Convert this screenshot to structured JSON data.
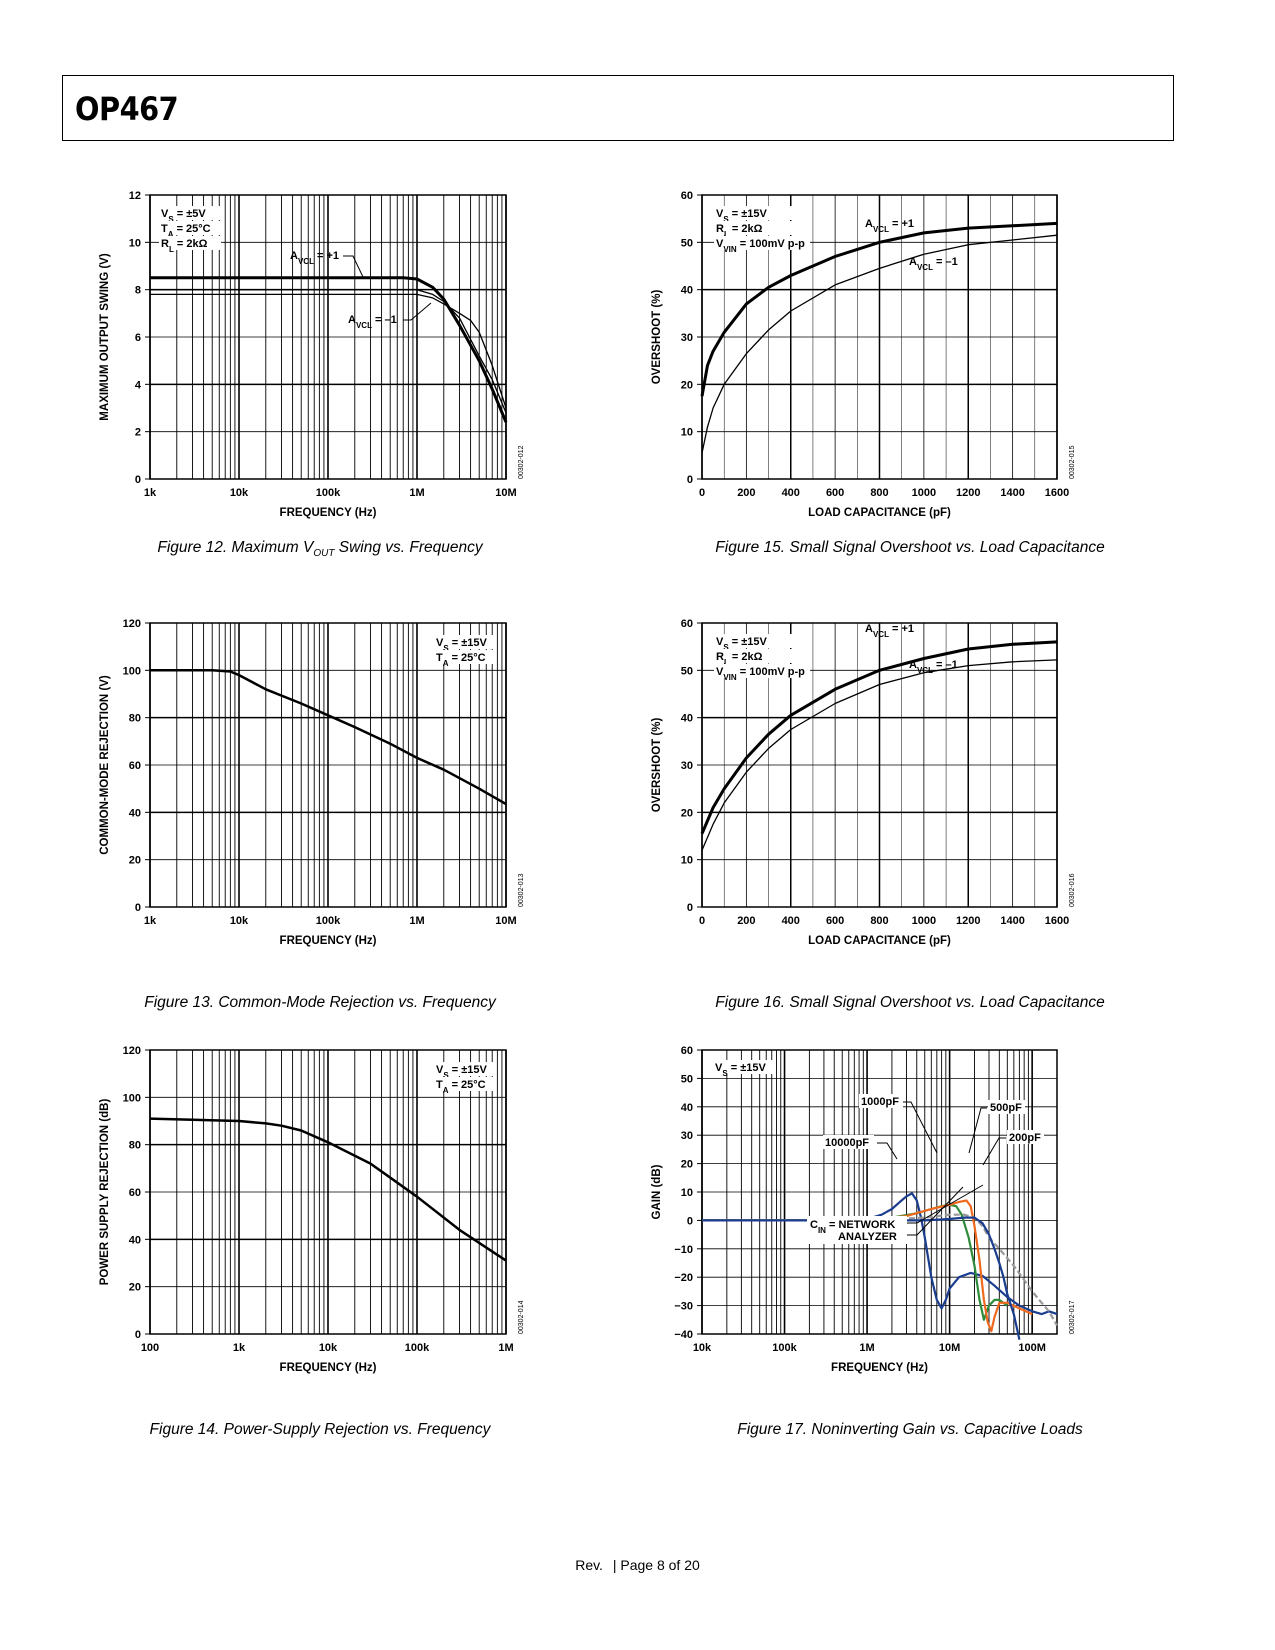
{
  "header": {
    "title": "OP467"
  },
  "footer": {
    "rev": "Rev.",
    "page": "| Page 8 of 20"
  },
  "figures": [
    {
      "caption_pre": "Figure 12. Maximum V",
      "caption_sub": "OUT",
      "caption_post": " Swing vs. Frequency",
      "code": "00302-012"
    },
    {
      "caption": "Figure 13. Common-Mode Rejection vs. Frequency",
      "code": "00302-013"
    },
    {
      "caption": "Figure 14. Power-Supply Rejection vs. Frequency",
      "code": "00302-014"
    },
    {
      "caption": "Figure 15. Small Signal Overshoot vs. Load Capacitance",
      "code": "00302-015"
    },
    {
      "caption": "Figure 16. Small Signal Overshoot vs. Load Capacitance",
      "code": "00302-016"
    },
    {
      "caption": "Figure 17. Noninverting Gain vs. Capacitive Loads",
      "code": "00302-017"
    }
  ],
  "chart_data": [
    {
      "id": "fig12",
      "type": "line",
      "xscale": "log",
      "xlabel": "FREQUENCY (Hz)",
      "ylabel": "MAXIMUM OUTPUT SWING (V)",
      "xlim": [
        1000,
        10000000
      ],
      "ylim": [
        0,
        12
      ],
      "xticks": [
        [
          1000,
          "1k"
        ],
        [
          10000,
          "10k"
        ],
        [
          100000,
          "100k"
        ],
        [
          1000000,
          "1M"
        ],
        [
          10000000,
          "10M"
        ]
      ],
      "yticks": [
        0,
        2,
        4,
        6,
        8,
        10,
        12
      ],
      "conditions": [
        [
          "V",
          "S",
          " = ±5V"
        ],
        [
          "T",
          "A",
          " = 25°C"
        ],
        [
          "R",
          "L",
          " = 2kΩ"
        ]
      ],
      "series": [
        {
          "name": "AVCL = +1",
          "x": [
            1000,
            10000,
            100000,
            700000,
            1000000,
            1500000,
            2000000,
            3000000,
            5000000,
            7000000,
            10000000
          ],
          "y": [
            8.5,
            8.5,
            8.5,
            8.5,
            8.45,
            8.1,
            7.6,
            6.5,
            5.0,
            3.8,
            2.4
          ]
        },
        {
          "name": "AVCL = –1",
          "x": [
            1000,
            10000,
            100000,
            1000000,
            1500000,
            2000000,
            3000000,
            4000000,
            5000000,
            7000000,
            10000000
          ],
          "y": [
            7.8,
            7.8,
            7.8,
            7.8,
            7.65,
            7.4,
            7.0,
            6.7,
            6.2,
            4.8,
            3.0
          ]
        },
        {
          "name": "",
          "x": [
            1000,
            10000,
            100000,
            1000000,
            1500000,
            2000000,
            3000000,
            5000000,
            7000000,
            10000000
          ],
          "y": [
            8.0,
            8.0,
            8.0,
            8.0,
            7.8,
            7.5,
            6.8,
            5.2,
            4.2,
            2.8
          ]
        }
      ]
    },
    {
      "id": "fig13",
      "type": "line",
      "xscale": "log",
      "xlabel": "FREQUENCY (Hz)",
      "ylabel": "COMMON-MODE REJECTION (V)",
      "xlim": [
        1000,
        10000000
      ],
      "ylim": [
        0,
        120
      ],
      "xticks": [
        [
          1000,
          "1k"
        ],
        [
          10000,
          "10k"
        ],
        [
          100000,
          "100k"
        ],
        [
          1000000,
          "1M"
        ],
        [
          10000000,
          "10M"
        ]
      ],
      "yticks": [
        0,
        20,
        40,
        60,
        80,
        100,
        120
      ],
      "conditions": [
        [
          "V",
          "S",
          " = ±15V"
        ],
        [
          "T",
          "A",
          " = 25°C"
        ]
      ],
      "series": [
        {
          "name": "",
          "x": [
            1000,
            5000,
            8000,
            10000,
            20000,
            50000,
            100000,
            200000,
            500000,
            1000000,
            2000000,
            5000000,
            10000000
          ],
          "y": [
            100,
            100,
            99.5,
            98,
            92,
            86,
            81,
            76,
            69,
            63,
            58,
            50,
            43.5
          ]
        }
      ]
    },
    {
      "id": "fig14",
      "type": "line",
      "xscale": "log",
      "xlabel": "FREQUENCY (Hz)",
      "ylabel": "POWER SUPPLY REJECTION (dB)",
      "xlim": [
        100,
        1000000
      ],
      "ylim": [
        0,
        120
      ],
      "xticks": [
        [
          100,
          "100"
        ],
        [
          1000,
          "1k"
        ],
        [
          10000,
          "10k"
        ],
        [
          100000,
          "100k"
        ],
        [
          1000000,
          "1M"
        ]
      ],
      "yticks": [
        0,
        20,
        40,
        60,
        80,
        100,
        120
      ],
      "conditions": [
        [
          "V",
          "S",
          " = ±15V"
        ],
        [
          "T",
          "A",
          " = 25°C"
        ]
      ],
      "series": [
        {
          "name": "",
          "x": [
            100,
            300,
            1000,
            2000,
            3000,
            5000,
            10000,
            30000,
            100000,
            300000,
            1000000
          ],
          "y": [
            91,
            90.5,
            90,
            89,
            88,
            86,
            81,
            72,
            58,
            44,
            31
          ]
        }
      ]
    },
    {
      "id": "fig15",
      "type": "line",
      "xscale": "linear",
      "xlabel": "LOAD CAPACITANCE (pF)",
      "ylabel": "OVERSHOOT (%)",
      "xlim": [
        0,
        1600
      ],
      "ylim": [
        0,
        60
      ],
      "xticks": [
        [
          0,
          "0"
        ],
        [
          200,
          "200"
        ],
        [
          400,
          "400"
        ],
        [
          600,
          "600"
        ],
        [
          800,
          "800"
        ],
        [
          1000,
          "1000"
        ],
        [
          1200,
          "1200"
        ],
        [
          1400,
          "1400"
        ],
        [
          1600,
          "1600"
        ]
      ],
      "yticks": [
        0,
        10,
        20,
        30,
        40,
        50,
        60
      ],
      "conditions": [
        [
          "V",
          "S",
          " = ±15V"
        ],
        [
          "R",
          "L",
          " = 2kΩ"
        ],
        [
          "V",
          "VIN",
          " = 100mV p-p"
        ]
      ],
      "series": [
        {
          "name": "AVCL = +1",
          "x": [
            0,
            25,
            50,
            100,
            200,
            300,
            400,
            600,
            800,
            1000,
            1200,
            1400,
            1600
          ],
          "y": [
            17.5,
            24,
            27,
            31,
            37,
            40.5,
            43,
            47,
            50,
            52,
            53,
            53.5,
            54
          ]
        },
        {
          "name": "AVCL = –1",
          "x": [
            0,
            25,
            50,
            100,
            200,
            300,
            400,
            600,
            800,
            1000,
            1200,
            1400,
            1600
          ],
          "y": [
            5.5,
            11,
            15,
            20,
            26.5,
            31.5,
            35.5,
            41,
            44.5,
            47.5,
            49.5,
            50.5,
            51.5
          ]
        }
      ]
    },
    {
      "id": "fig16",
      "type": "line",
      "xscale": "linear",
      "xlabel": "LOAD CAPACITANCE (pF)",
      "ylabel": "OVERSHOOT (%)",
      "xlim": [
        0,
        1600
      ],
      "ylim": [
        0,
        60
      ],
      "xticks": [
        [
          0,
          "0"
        ],
        [
          200,
          "200"
        ],
        [
          400,
          "400"
        ],
        [
          600,
          "600"
        ],
        [
          800,
          "800"
        ],
        [
          1000,
          "1000"
        ],
        [
          1200,
          "1200"
        ],
        [
          1400,
          "1400"
        ],
        [
          1600,
          "1600"
        ]
      ],
      "yticks": [
        0,
        10,
        20,
        30,
        40,
        50,
        60
      ],
      "conditions": [
        [
          "V",
          "S",
          " = ±15V"
        ],
        [
          "R",
          "L",
          " = 2kΩ"
        ],
        [
          "V",
          "VIN",
          " = 100mV p-p"
        ]
      ],
      "series": [
        {
          "name": "AVCL = +1",
          "x": [
            0,
            50,
            100,
            200,
            300,
            400,
            600,
            800,
            1000,
            1200,
            1400,
            1600
          ],
          "y": [
            15.5,
            21,
            25,
            31.5,
            36.5,
            40.5,
            46,
            50,
            52.5,
            54.5,
            55.5,
            56
          ]
        },
        {
          "name": "AVCL = –1",
          "x": [
            0,
            50,
            100,
            200,
            300,
            400,
            600,
            800,
            1000,
            1200,
            1400,
            1600
          ],
          "y": [
            12,
            17.5,
            22,
            28.5,
            33.5,
            37.5,
            43,
            47,
            49.5,
            51,
            51.8,
            52.2
          ]
        }
      ]
    },
    {
      "id": "fig17",
      "type": "line",
      "xscale": "log",
      "xlabel": "FREQUENCY (Hz)",
      "ylabel": "GAIN (dB)",
      "xlim": [
        10000,
        200000000
      ],
      "ylim": [
        -40,
        60
      ],
      "xticks": [
        [
          10000,
          "10k"
        ],
        [
          100000,
          "100k"
        ],
        [
          1000000,
          "1M"
        ],
        [
          10000000,
          "10M"
        ],
        [
          100000000,
          "100M"
        ]
      ],
      "yticks": [
        -40,
        -30,
        -20,
        -10,
        0,
        10,
        20,
        30,
        40,
        50,
        60
      ],
      "conditions": [
        [
          "V",
          "S",
          " = ±15V"
        ]
      ],
      "annotations": {
        "c1000": "1000pF",
        "c10000": "10000pF",
        "c500": "500pF",
        "c200": "200pF",
        "cin_pre": "C",
        "cin_sub": "IN",
        "cin_post": " = NETWORK",
        "cin_line2": "ANALYZER"
      },
      "series": [
        {
          "name": "10000pF",
          "color": "#1a3d8f",
          "x": [
            10000,
            500000,
            1000000,
            1500000,
            2000000,
            2500000,
            3000000,
            3500000,
            4000000,
            4500000,
            5000000,
            6000000,
            7000000,
            8000000,
            9000000,
            10000000,
            13000000,
            18000000,
            25000000,
            35000000,
            50000000,
            70000000,
            100000000,
            130000000,
            160000000,
            200000000
          ],
          "y": [
            0,
            0,
            0.5,
            2,
            4,
            6.5,
            8.5,
            9.5,
            7,
            1,
            -6,
            -20,
            -28,
            -31,
            -28,
            -24,
            -20,
            -18.5,
            -19.5,
            -23,
            -27,
            -30,
            -32,
            -33,
            -32,
            -33
          ]
        },
        {
          "name": "1000pF",
          "color": "#2e8b3a",
          "x": [
            10000,
            1000000,
            2000000,
            4000000,
            6000000,
            8000000,
            10000000,
            12000000,
            14000000,
            17000000,
            20000000,
            23000000,
            26000000,
            30000000,
            35000000,
            40000000,
            50000000
          ],
          "y": [
            0,
            0,
            1,
            2.5,
            4,
            5,
            5.5,
            5,
            2,
            -6,
            -16,
            -28,
            -35,
            -30,
            -28,
            -28,
            -30
          ]
        },
        {
          "name": "500pF",
          "color": "#ef6a1e",
          "x": [
            10000,
            1000000,
            3000000,
            6000000,
            10000000,
            13000000,
            16000000,
            18000000,
            20000000,
            23000000,
            26000000,
            29000000,
            32000000,
            35000000,
            40000000,
            50000000,
            70000000,
            100000000
          ],
          "y": [
            0,
            0,
            1.5,
            4,
            5.5,
            6.5,
            7,
            5,
            -2,
            -14,
            -28,
            -36,
            -39,
            -34,
            -29,
            -29,
            -31,
            -33
          ]
        },
        {
          "name": "200pF",
          "color": "#999999",
          "dash": true,
          "x": [
            10000,
            1000000,
            5000000,
            10000000,
            15000000,
            20000000,
            25000000,
            30000000,
            40000000,
            60000000,
            80000000,
            100000000,
            130000000,
            160000000,
            200000000
          ],
          "y": [
            0,
            0,
            1,
            2,
            2,
            1,
            -2,
            -6,
            -10,
            -16,
            -21,
            -25,
            -29,
            -32,
            -37
          ]
        },
        {
          "name": "CIN = NETWORK ANALYZER",
          "color": "#1a3d8f",
          "x": [
            10000,
            5000000,
            10000000,
            15000000,
            20000000,
            25000000,
            30000000,
            35000000,
            40000000,
            45000000,
            50000000,
            60000000,
            70000000
          ],
          "y": [
            0,
            0,
            0.5,
            1,
            1,
            -1,
            -5,
            -10,
            -15,
            -20,
            -26,
            -33,
            -42
          ]
        }
      ]
    }
  ]
}
